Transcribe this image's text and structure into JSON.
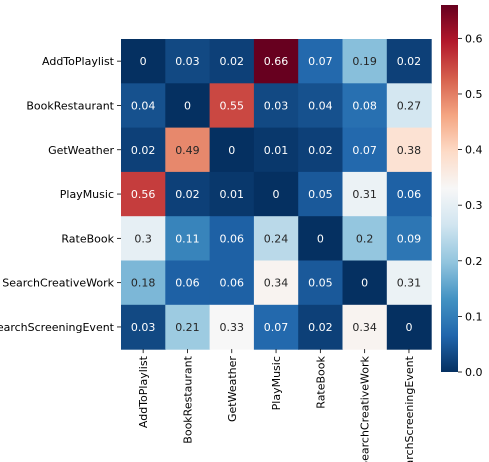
{
  "chart_data": {
    "type": "heatmap",
    "rows": [
      "AddToPlaylist",
      "BookRestaurant",
      "GetWeather",
      "PlayMusic",
      "RateBook",
      "SearchCreativeWork",
      "SearchScreeningEvent"
    ],
    "columns": [
      "AddToPlaylist",
      "BookRestaurant",
      "GetWeather",
      "PlayMusic",
      "RateBook",
      "SearchCreativeWork",
      "SearchScreeningEvent"
    ],
    "values": [
      [
        0,
        0.03,
        0.02,
        0.66,
        0.07,
        0.19,
        0.02
      ],
      [
        0.04,
        0,
        0.55,
        0.03,
        0.04,
        0.08,
        0.27
      ],
      [
        0.02,
        0.49,
        0,
        0.01,
        0.02,
        0.07,
        0.38
      ],
      [
        0.56,
        0.02,
        0.01,
        0,
        0.05,
        0.31,
        0.06
      ],
      [
        0.3,
        0.11,
        0.06,
        0.24,
        0,
        0.2,
        0.09
      ],
      [
        0.18,
        0.06,
        0.06,
        0.34,
        0.05,
        0,
        0.31
      ],
      [
        0.03,
        0.21,
        0.33,
        0.07,
        0.02,
        0.34,
        0
      ]
    ],
    "colormap": "RdBu_r",
    "vmin": 0,
    "vmax": 0.66,
    "colorbar": {
      "ticks": [
        0.0,
        0.1,
        0.2,
        0.3,
        0.4,
        0.5,
        0.6
      ],
      "tick_labels": [
        "0.0",
        "0.1",
        "0.2",
        "0.3",
        "0.4",
        "0.5",
        "0.6"
      ]
    },
    "annotations": true,
    "title": "",
    "xlabel": "",
    "ylabel": ""
  }
}
